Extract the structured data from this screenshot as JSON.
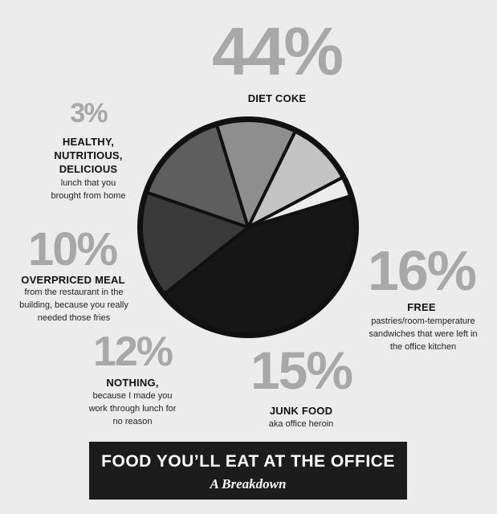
{
  "chart_data": {
    "type": "pie",
    "title": "FOOD YOU'LL EAT AT THE OFFICE",
    "subtitle": "A Breakdown",
    "slices": [
      {
        "label": "DIET COKE",
        "value": 44,
        "percent_label": "44%",
        "description": "",
        "color": "#161616"
      },
      {
        "label": "FREE",
        "value": 16,
        "percent_label": "16%",
        "description": "pastries/room-temperature sandwiches that were left in the office kitchen",
        "color": "#3a3a3a"
      },
      {
        "label": "JUNK FOOD",
        "value": 15,
        "percent_label": "15%",
        "description": "aka office heroin",
        "color": "#5e5e5e"
      },
      {
        "label": "NOTHING,",
        "value": 12,
        "percent_label": "12%",
        "description": "because I made you work through lunch for no reason",
        "color": "#8e8e8e"
      },
      {
        "label": "OVERPRICED MEAL",
        "value": 10,
        "percent_label": "10%",
        "description": "from the restaurant in the building, because you really needed those fries",
        "color": "#c4c4c4"
      },
      {
        "label": "HEALTHY, NUTRITIOUS, DELICIOUS",
        "value": 3,
        "percent_label": "3%",
        "description": "lunch that you brought from home",
        "color": "#ececec"
      }
    ]
  },
  "labels": {
    "diet_coke": {
      "pct": "44%",
      "name": "DIET COKE"
    },
    "free": {
      "pct": "16%",
      "name": "FREE",
      "desc_lines": [
        "pastries/room-temperature",
        "sandwiches that were left in",
        "the office kitchen"
      ]
    },
    "junk": {
      "pct": "15%",
      "name": "JUNK FOOD",
      "desc_lines": [
        "aka office heroin"
      ]
    },
    "nothing": {
      "pct": "12%",
      "name": "NOTHING,",
      "desc_lines": [
        "because I made you",
        "work through lunch for",
        "no reason"
      ]
    },
    "overpriced": {
      "pct": "10%",
      "name": "OVERPRICED MEAL",
      "desc_lines": [
        "from the restaurant in the",
        "building, because you really",
        "needed those fries"
      ]
    },
    "healthy": {
      "pct": "3%",
      "name_lines": [
        "HEALTHY,",
        "NUTRITIOUS,",
        "DELICIOUS"
      ],
      "desc_lines": [
        "lunch that you",
        "brought from home"
      ]
    }
  },
  "title_box": {
    "title": "FOOD YOU’LL EAT AT THE OFFICE",
    "subtitle": "A Breakdown"
  }
}
